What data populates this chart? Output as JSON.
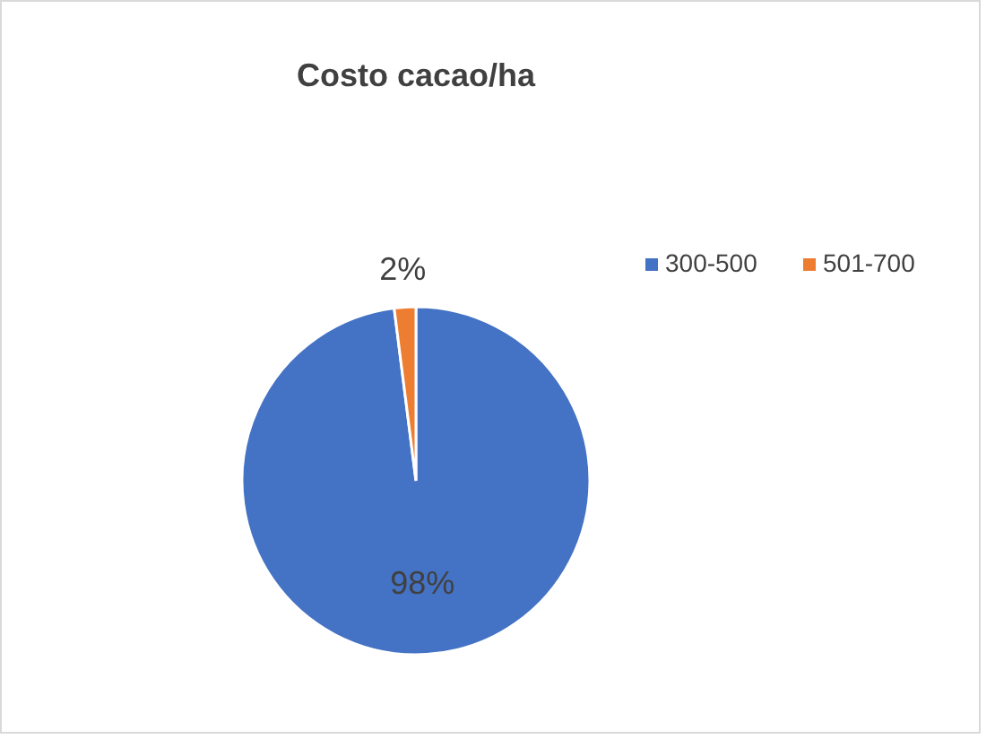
{
  "chart_data": {
    "type": "pie",
    "title": "Costo cacao/ha",
    "categories": [
      "300-500",
      "501-700"
    ],
    "values": [
      98,
      2
    ],
    "value_labels": [
      "98%",
      "2%"
    ],
    "colors": [
      "#4472c4",
      "#ed7d31"
    ],
    "legend": "right"
  }
}
